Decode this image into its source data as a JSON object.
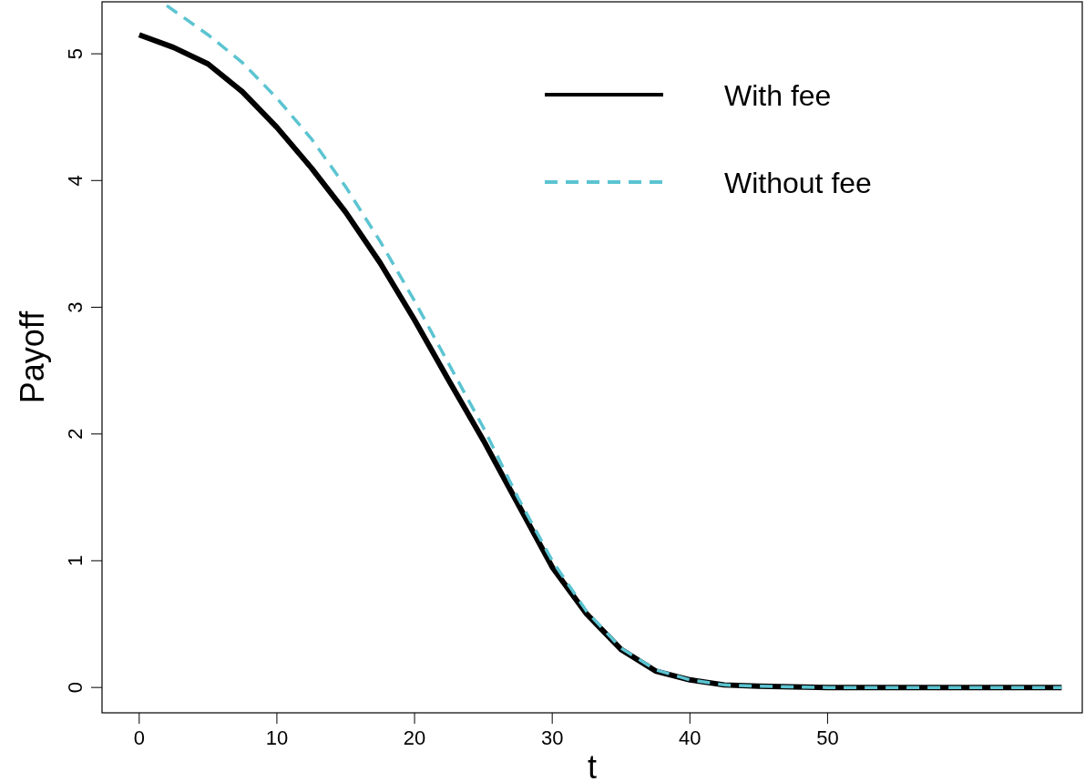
{
  "chart_data": {
    "type": "line",
    "xlabel": "t",
    "ylabel": "Payoff",
    "xlim": [
      -2.7,
      68.5
    ],
    "ylim": [
      -0.2,
      5.41
    ],
    "xticks": [
      0,
      10,
      20,
      30,
      40,
      50
    ],
    "yticks": [
      0,
      1,
      2,
      3,
      4,
      5
    ],
    "grid": false,
    "legend": "top right",
    "series": [
      {
        "name": "With fee",
        "color": "#000000",
        "line_style": "solid",
        "x": [
          0,
          2.5,
          5,
          7.5,
          10,
          12.5,
          15,
          17.5,
          20,
          22.5,
          25,
          27.5,
          30,
          32.5,
          35,
          37.5,
          40,
          42.5,
          45,
          50,
          55,
          60,
          67
        ],
        "values": [
          5.15,
          5.05,
          4.92,
          4.7,
          4.42,
          4.1,
          3.75,
          3.35,
          2.9,
          2.42,
          1.95,
          1.45,
          0.95,
          0.58,
          0.3,
          0.13,
          0.06,
          0.02,
          0.01,
          0,
          0,
          0,
          0
        ]
      },
      {
        "name": "Without fee",
        "color": "#5bc4d1",
        "line_style": "dashed",
        "x": [
          2,
          5,
          7.5,
          10,
          12.5,
          15,
          17.5,
          20,
          22.5,
          25,
          27.5,
          30,
          32.5,
          35,
          37.5,
          40,
          42.5,
          45,
          50,
          55,
          60,
          67
        ],
        "values": [
          5.38,
          5.15,
          4.93,
          4.65,
          4.33,
          3.95,
          3.52,
          3.05,
          2.55,
          2.05,
          1.5,
          1.0,
          0.6,
          0.31,
          0.14,
          0.06,
          0.02,
          0.01,
          0,
          0,
          0,
          0
        ]
      }
    ]
  }
}
